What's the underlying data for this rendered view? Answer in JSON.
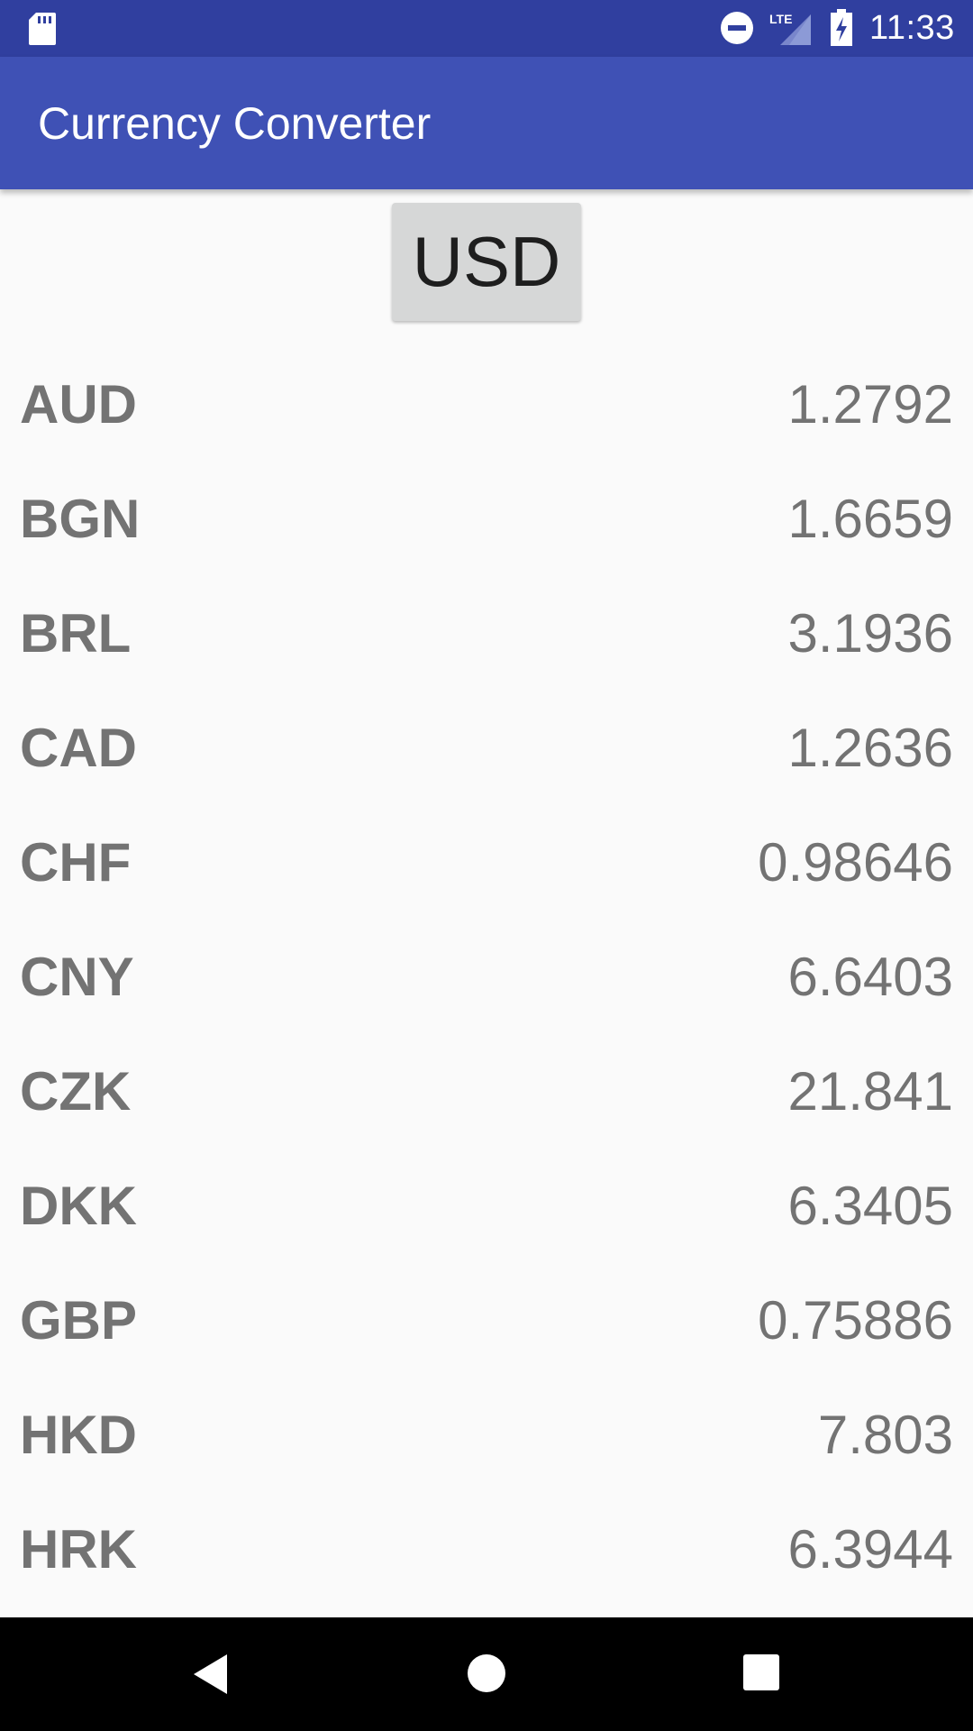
{
  "status_bar": {
    "time": "11:33",
    "network_label": "LTE",
    "icons": [
      "sd-card-icon",
      "do-not-disturb-icon",
      "signal-icon",
      "battery-charging-icon"
    ]
  },
  "app_bar": {
    "title": "Currency Converter",
    "color": "#3f51b5",
    "status_color": "#303f9f"
  },
  "base_currency": {
    "label": "USD"
  },
  "rates": [
    {
      "code": "AUD",
      "value": "1.2792"
    },
    {
      "code": "BGN",
      "value": "1.6659"
    },
    {
      "code": "BRL",
      "value": "3.1936"
    },
    {
      "code": "CAD",
      "value": "1.2636"
    },
    {
      "code": "CHF",
      "value": "0.98646"
    },
    {
      "code": "CNY",
      "value": "6.6403"
    },
    {
      "code": "CZK",
      "value": "21.841"
    },
    {
      "code": "DKK",
      "value": "6.3405"
    },
    {
      "code": "GBP",
      "value": "0.75886"
    },
    {
      "code": "HKD",
      "value": "7.803"
    },
    {
      "code": "HRK",
      "value": "6.3944"
    }
  ],
  "nav_bar": {
    "icons": [
      "back-icon",
      "home-icon",
      "recents-icon"
    ]
  }
}
